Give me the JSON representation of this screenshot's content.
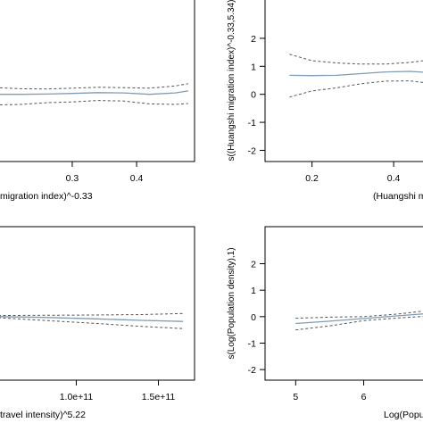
{
  "chart_data": [
    {
      "type": "line",
      "xlabel": "migration index)^-0.33",
      "ylabel": "",
      "xlim": [
        0.185,
        0.49
      ],
      "ylim": [
        -2.4,
        3.4
      ],
      "x_ticks": [
        0.3,
        0.4
      ],
      "y_ticks": [],
      "x": [
        0.18,
        0.22,
        0.26,
        0.3,
        0.34,
        0.38,
        0.42,
        0.46,
        0.48
      ],
      "series": [
        {
          "style": "solid",
          "color": "#7f9bb5",
          "values": [
            0.0,
            0.0,
            0.01,
            0.03,
            0.06,
            0.05,
            0.0,
            0.05,
            0.12
          ]
        },
        {
          "style": "dashed",
          "color": "#555555",
          "values": [
            0.24,
            0.2,
            0.19,
            0.22,
            0.25,
            0.24,
            0.22,
            0.3,
            0.38
          ]
        },
        {
          "style": "dashed",
          "color": "#555555",
          "values": [
            -0.38,
            -0.36,
            -0.3,
            -0.27,
            -0.22,
            -0.24,
            -0.34,
            -0.36,
            -0.33
          ]
        }
      ]
    },
    {
      "type": "line",
      "xlabel": "(Huangshi m",
      "ylabel": "s((Huangshi migration index)^-0.33,5.34)",
      "xlim": [
        0.085,
        0.485
      ],
      "ylim": [
        -2.4,
        3.4
      ],
      "x_ticks": [
        0.2,
        0.4
      ],
      "y_ticks": [
        -2,
        -1,
        0,
        1,
        2
      ],
      "x": [
        0.145,
        0.2,
        0.26,
        0.32,
        0.38,
        0.44,
        0.485
      ],
      "series": [
        {
          "style": "solid",
          "color": "#7f9bb5",
          "values": [
            0.68,
            0.67,
            0.68,
            0.74,
            0.8,
            0.82,
            0.78
          ]
        },
        {
          "style": "dashed",
          "color": "#555555",
          "values": [
            1.43,
            1.2,
            1.12,
            1.08,
            1.08,
            1.14,
            1.22
          ]
        },
        {
          "style": "dashed",
          "color": "#555555",
          "values": [
            -0.1,
            0.12,
            0.23,
            0.38,
            0.47,
            0.48,
            0.4
          ]
        }
      ]
    },
    {
      "type": "line",
      "xlabel": "travel intensity)^5.22",
      "ylabel": "",
      "xlim": [
        52500000000.0,
        172000000000.0
      ],
      "ylim": [
        -2.4,
        3.4
      ],
      "x_ticks": [
        "1.0e+11",
        "1.5e+11"
      ],
      "x_tick_values": [
        100000000000.0,
        150000000000.0
      ],
      "y_ticks": [],
      "x": [
        52500000000.0,
        80000000000.0,
        110000000000.0,
        140000000000.0,
        165000000000.0
      ],
      "series": [
        {
          "style": "solid",
          "color": "#7f9bb5",
          "values": [
            0.0,
            -0.03,
            -0.08,
            -0.14,
            -0.18
          ]
        },
        {
          "style": "dashed",
          "color": "#555555",
          "values": [
            0.04,
            0.05,
            0.06,
            0.08,
            0.12
          ]
        },
        {
          "style": "dashed",
          "color": "#555555",
          "values": [
            -0.04,
            -0.14,
            -0.25,
            -0.37,
            -0.45
          ]
        }
      ]
    },
    {
      "type": "line",
      "xlabel": "Log(Popu",
      "ylabel": "s(Log(Population density),1)",
      "xlim": [
        4.55,
        6.95
      ],
      "ylim": [
        -2.4,
        3.4
      ],
      "x_ticks": [
        5,
        6
      ],
      "y_ticks": [
        -2,
        -1,
        0,
        1,
        2
      ],
      "x": [
        5.0,
        5.5,
        6.0,
        6.5,
        6.95
      ],
      "series": [
        {
          "style": "solid",
          "color": "#7f9bb5",
          "values": [
            -0.26,
            -0.17,
            -0.07,
            0.03,
            0.12
          ]
        },
        {
          "style": "dashed",
          "color": "#555555",
          "values": [
            -0.06,
            -0.02,
            0.0,
            0.1,
            0.23
          ]
        },
        {
          "style": "dashed",
          "color": "#555555",
          "values": [
            -0.5,
            -0.35,
            -0.15,
            -0.05,
            0.02
          ]
        }
      ]
    }
  ]
}
